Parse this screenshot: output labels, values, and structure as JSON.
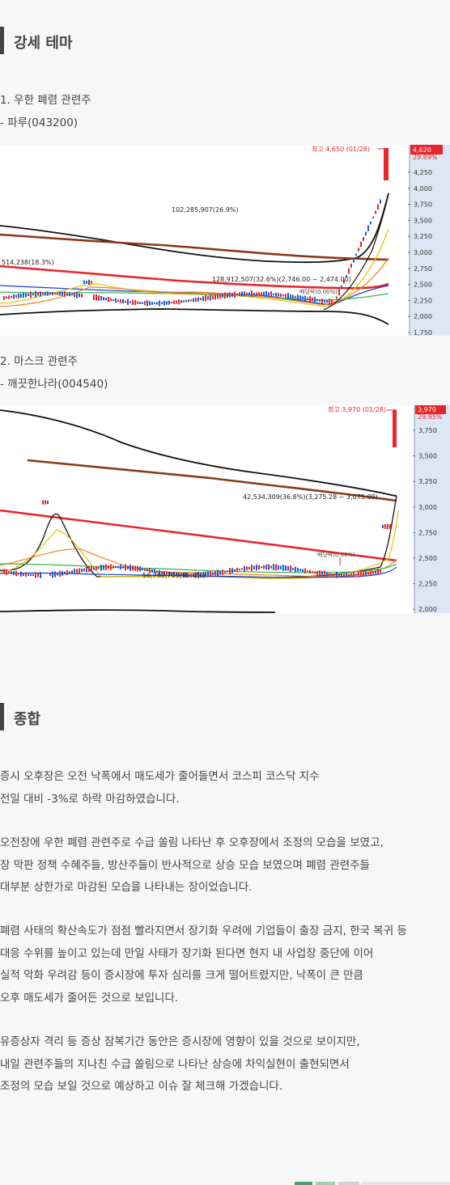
{
  "section1": {
    "title": "강세 테마"
  },
  "theme1": {
    "heading": "1. 우한 폐렴 관련주",
    "stock": "- 파루(043200)",
    "chart": {
      "max_label": "최고 4,650 (01/28)",
      "price_now": "4,620",
      "pct_now": "29.89%",
      "volume_label": "102,285,907(26.9%)",
      "left_label": "514,238(18.3%)",
      "mid_label": "128,912,507(32.6%)(2,746.00 ~ 2,474.00)",
      "event_label": "배당락(0.00%)",
      "y_ticks": [
        "4,250",
        "4,000",
        "3,750",
        "3,500",
        "3,250",
        "3,000",
        "2,750",
        "2,500",
        "2,250",
        "2,000",
        "1,750"
      ]
    }
  },
  "theme2": {
    "heading": "2. 마스크 관련주",
    "stock": "- 깨끗한나라(004540)",
    "chart": {
      "max_label": "최고 3,970 (01/28)",
      "price_now": "3,970",
      "pct_now": "29.95%",
      "volume_label": "42,534,309(36.8%)(3,275.28 ~ 3,075.00)",
      "left_label": "56,788,705(96.6%)",
      "event_label": "배당락(0.00%)",
      "y_ticks": [
        "3,750",
        "3,500",
        "3,250",
        "3,000",
        "2,750",
        "2,500",
        "2,250",
        "2,000"
      ]
    }
  },
  "section2": {
    "title": "종합"
  },
  "summary": {
    "p1": [
      "증시 오후장은 오전 낙폭에서 매도세가 줄어들면서 코스피 코스닥 지수",
      "전일 대비 -3%로 하락 마감하였습니다."
    ],
    "p2": [
      "오전장에 우한 폐렴 관련주로 수급 쏠림 나타난 후 오후장에서 조정의 모습을 보였고,",
      "장 막판 정책 수혜주들, 방산주들이 반사적으로 상승 모습 보였으며 폐렴 관련주들",
      "대부분 상한가로 마감된 모습을 나타내는 장이었습니다."
    ],
    "p3": [
      "폐렴 사태의 확산속도가 점점 빨라지면서 장기화 우려에 기업들이 출장 금지, 한국 복귀 등",
      "대응 수위를 높이고 있는데 만일 사태가 장기화 된다면 현지 내 사업장 중단에 이어",
      "실적 악화 우려감 등이 증시장에 투자 심리를 크게 떨어트렸지만, 낙폭이 큰 만큼",
      "오후 매도세가 줄어든 것으로 보입니다."
    ],
    "p4": [
      "유증상자 격리 등 증상 잠복기간 동안은 증시장에 영향이 있을 것으로 보이지만,",
      "내일 관련주들의 지나친 수급 쏠림으로 나타난 상승에 차익실현이 출현되면서",
      "조정의 모습 보일 것으로 예상하고 이슈 잘 체크해 가겠습니다."
    ]
  },
  "colors": {
    "accent": "#444444",
    "axis_bg": "#dde6f3",
    "up": "#e8262b",
    "down": "#1a5bd8"
  }
}
